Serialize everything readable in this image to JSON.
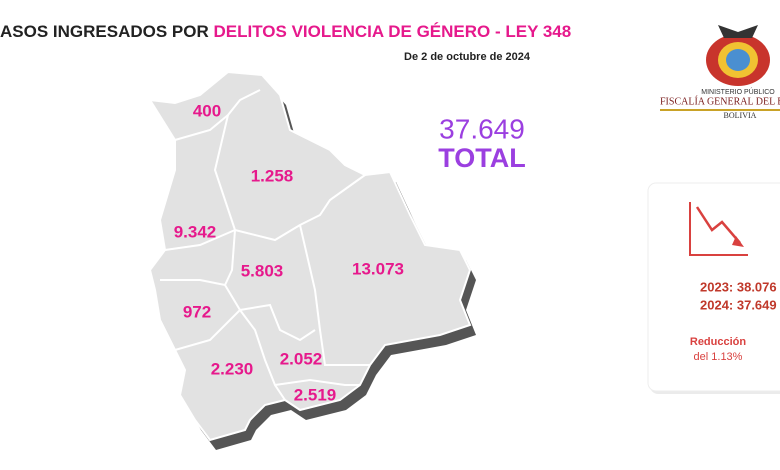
{
  "header": {
    "title_black": "ASOS INGRESADOS POR ",
    "title_pink": "DELITOS VIOLENCIA DE GÉNERO - LEY 348",
    "subtitle": "De 2 de octubre de 2024"
  },
  "map": {
    "regions": [
      "400",
      "1.258",
      "9.342",
      "5.803",
      "13.073",
      "972",
      "2.230",
      "2.052",
      "2.519"
    ]
  },
  "total": {
    "value": "37.649",
    "label": "TOTAL"
  },
  "logo": {
    "line1": "MINISTERIO PÚBLICO",
    "line2": "FISCALÍA GENERAL DEL E",
    "line3": "BOLIVIA"
  },
  "card": {
    "year2023": "2023:  38.076",
    "year2024": "2024: 37.649",
    "heading": "Reducción",
    "detail": "del 1.13%"
  }
}
